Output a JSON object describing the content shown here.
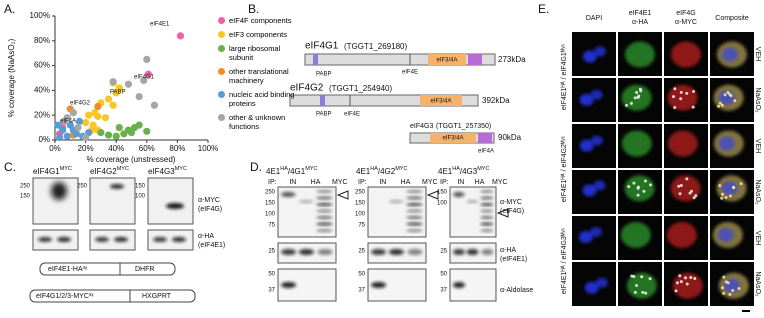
{
  "chart_data": {
    "type": "scatter",
    "panel_label": "A.",
    "x_label": "% coverage (unstressed)",
    "y_label": "% coverage (NaAsO₂)",
    "xlim": [
      0,
      100
    ],
    "ylim": [
      0,
      100
    ],
    "xticks": [
      {
        "value": 0,
        "label": "0%"
      },
      {
        "value": 20,
        "label": "20%"
      },
      {
        "value": 40,
        "label": "40%"
      },
      {
        "value": 60,
        "label": "60%"
      },
      {
        "value": 80,
        "label": "80%"
      },
      {
        "value": 100,
        "label": "100%"
      }
    ],
    "yticks": [
      {
        "value": 0,
        "label": "0%"
      },
      {
        "value": 20,
        "label": "20%"
      },
      {
        "value": 40,
        "label": "40%"
      },
      {
        "value": 60,
        "label": "60%"
      },
      {
        "value": 80,
        "label": "80%"
      },
      {
        "value": 100,
        "label": "100%"
      }
    ],
    "series": [
      {
        "name": "eIF4F components",
        "color": "#ee5fa7",
        "x": [
          82,
          61,
          5,
          3
        ],
        "values": [
          84,
          53,
          10,
          5
        ]
      },
      {
        "name": "eIF3 components",
        "color": "#f9c623",
        "x": [
          38,
          40,
          35,
          30,
          26,
          28,
          33,
          22,
          20,
          25,
          24,
          28,
          38,
          42
        ],
        "values": [
          46,
          38,
          33,
          30,
          22,
          19,
          18,
          20,
          14,
          12,
          8,
          8,
          28,
          42
        ]
      },
      {
        "name": "large ribosomal subunit",
        "color": "#6ab04c",
        "x": [
          50,
          45,
          40,
          35,
          42,
          60,
          48,
          30,
          52,
          55
        ],
        "values": [
          6,
          5,
          3,
          4,
          10,
          7,
          8,
          6,
          10,
          12
        ]
      },
      {
        "name": "other translational machinery",
        "color": "#f28c28",
        "x": [
          10,
          12,
          28
        ],
        "values": [
          25,
          4,
          27
        ]
      },
      {
        "name": "nucleic acid binding proteins",
        "color": "#5b9bd5",
        "x": [
          5,
          8,
          12,
          14,
          10,
          18,
          3,
          16,
          22,
          2
        ],
        "values": [
          8,
          3,
          8,
          5,
          12,
          3,
          2,
          15,
          6,
          12
        ]
      },
      {
        "name": "other & unknown functions",
        "color": "#a6a6a6",
        "x": [
          60,
          48,
          55,
          65,
          38,
          12,
          6,
          15,
          20,
          8,
          58
        ],
        "values": [
          65,
          45,
          35,
          28,
          47,
          22,
          15,
          10,
          2,
          18,
          48
        ]
      }
    ],
    "annotations": [
      "eIF4E1",
      "eIF4G1",
      "PABP",
      "eIF4G2",
      "eIF4A"
    ]
  },
  "panel_b": {
    "label": "B.",
    "constructs": [
      {
        "name": "eIF4G1",
        "gene_id": "(TGGT1_269180)",
        "size": "273kDa",
        "domains": [
          "PABP",
          "eIF4E",
          "eIF3/4A"
        ]
      },
      {
        "name": "eIF4G2",
        "gene_id": "(TGGT1_254940)",
        "size": "392kDa",
        "domains": [
          "PABP",
          "eIF4E",
          "eIF3/4A"
        ]
      },
      {
        "name": "eIF4G3",
        "gene_id": "(TGGT1_257350)",
        "size": "90kDa",
        "domains": [
          "eIF3/4A",
          "eIF4A"
        ]
      }
    ]
  },
  "panel_c": {
    "label": "C.",
    "blots": [
      {
        "title": "eIF4G1",
        "sup": "MYC",
        "ladder": [
          "250",
          "150"
        ]
      },
      {
        "title": "eIF4G2",
        "sup": "MYC",
        "ladder": [
          "250"
        ]
      },
      {
        "title": "eIF4G3",
        "sup": "MYC",
        "ladder": [
          "150",
          "100"
        ]
      }
    ],
    "antibodies": [
      "α-MYC",
      "(eIF4G)",
      "α-HA",
      "(eIF4E1)"
    ],
    "constructs": [
      [
        "eIF4E1-HA³ˣ",
        "DHFR"
      ],
      [
        "eIF4G1/2/3-MYC³ˣ",
        "HXGPRT"
      ]
    ]
  },
  "panel_d": {
    "label": "D.",
    "blots": [
      {
        "a": "4E1",
        "a_sup": "HA",
        "b": "/4G1",
        "b_sup": "MYC",
        "ip": [
          "IP:",
          "IN",
          "HA",
          "MYC"
        ],
        "top": [
          "250",
          "150",
          "100",
          "75"
        ],
        "middle": [
          "25"
        ],
        "bottom": [
          "50",
          "37"
        ]
      },
      {
        "a": "4E1",
        "a_sup": "HA",
        "b": "/4G2",
        "b_sup": "MYC",
        "ip": [
          "IP:",
          "IN",
          "HA",
          "MYC"
        ],
        "top": [
          "250",
          "150",
          "100",
          "75"
        ],
        "middle": [
          "25"
        ],
        "bottom": [
          "50",
          "37"
        ]
      },
      {
        "a": "4E1",
        "a_sup": "HA",
        "b": "/4G3",
        "b_sup": "MYC",
        "ip": [
          "IP:",
          "IN",
          "HA",
          "MYC"
        ],
        "top": [
          "150",
          "100"
        ],
        "middle": [
          "25"
        ],
        "bottom": [
          "50",
          "37"
        ]
      }
    ],
    "antibodies": [
      "α-MYC",
      "(eIF4G)",
      "α-HA",
      "(eIF4E1)",
      "α-Aldolase"
    ]
  },
  "panel_e": {
    "label": "E.",
    "columns": [
      [
        "DAPI"
      ],
      [
        "eIF4E1",
        "α-HA"
      ],
      [
        "eIF4G",
        "α-MYC"
      ],
      [
        "Composite"
      ]
    ],
    "lines": [
      "eIF4E1ᴴᴬ / eIF4G1ᴹʸᶜ",
      "eIF4E1ᴴᴬ / eIF4G2ᴹʸᶜ",
      "eIF4E1ᴴᴬ / eIF4G3ᴹʸᶜ"
    ],
    "conditions": [
      "VEH",
      "NaAsO₂",
      "VEH",
      "NaAsO₂",
      "VEH",
      "NaAsO₂"
    ]
  }
}
